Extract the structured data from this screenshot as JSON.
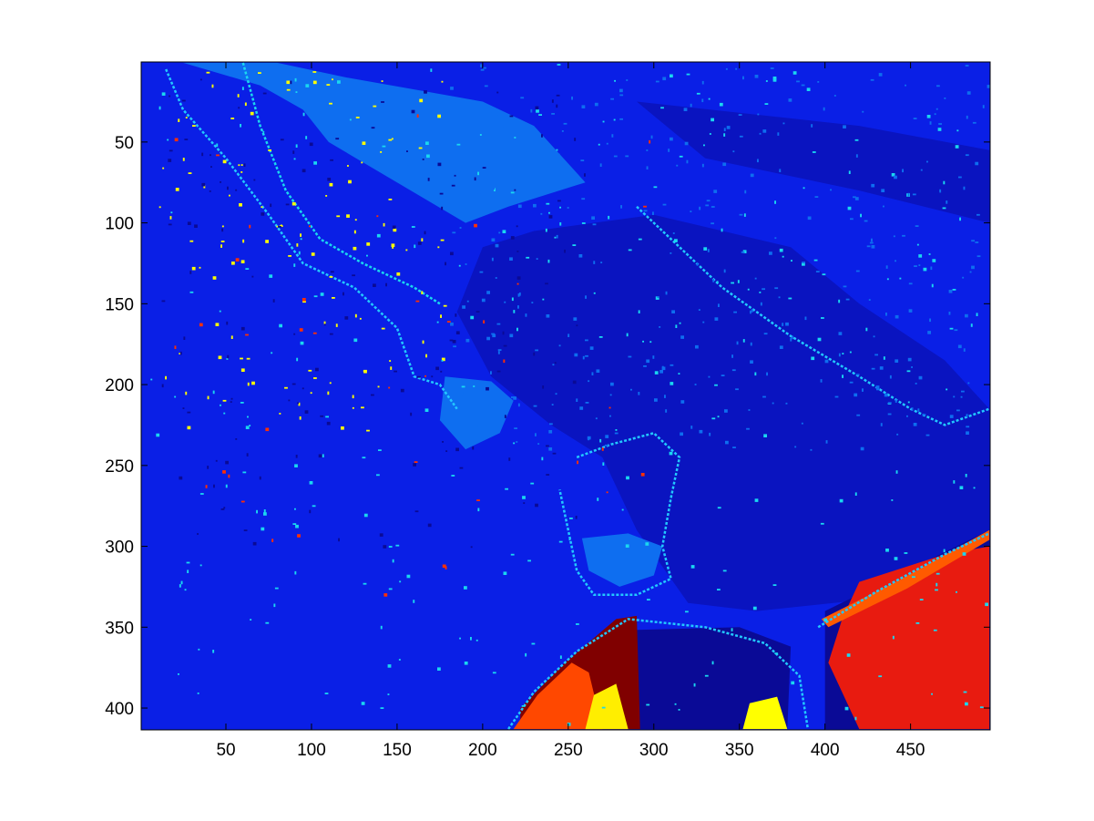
{
  "chart_data": {
    "type": "heatmap",
    "title": "",
    "xlabel": "",
    "ylabel": "",
    "xlim": [
      0.5,
      496.5
    ],
    "ylim": [
      0.5,
      413.5
    ],
    "y_reversed": true,
    "grid": false,
    "colormap": "jet",
    "x_ticks": [
      50,
      100,
      150,
      200,
      250,
      300,
      350,
      400,
      450
    ],
    "y_ticks": [
      50,
      100,
      150,
      200,
      250,
      300,
      350,
      400
    ],
    "x_tick_labels": [
      "50",
      "100",
      "150",
      "200",
      "250",
      "300",
      "350",
      "400",
      "450"
    ],
    "y_tick_labels": [
      "50",
      "100",
      "150",
      "200",
      "250",
      "300",
      "350",
      "400"
    ],
    "background_color": "#0a1fe6",
    "regions": [
      {
        "name": "upper-left-light-band",
        "color": "#0e6ef0",
        "points": [
          [
            25,
            1
          ],
          [
            80,
            1
          ],
          [
            120,
            10
          ],
          [
            200,
            25
          ],
          [
            230,
            40
          ],
          [
            260,
            75
          ],
          [
            215,
            90
          ],
          [
            190,
            100
          ],
          [
            150,
            75
          ],
          [
            110,
            50
          ],
          [
            95,
            30
          ],
          [
            70,
            15
          ]
        ]
      },
      {
        "name": "central-dark-channel",
        "color": "#0a14c0",
        "points": [
          [
            230,
            105
          ],
          [
            300,
            95
          ],
          [
            380,
            115
          ],
          [
            420,
            150
          ],
          [
            470,
            185
          ],
          [
            496,
            215
          ],
          [
            496,
            300
          ],
          [
            450,
            330
          ],
          [
            360,
            340
          ],
          [
            320,
            335
          ],
          [
            290,
            290
          ],
          [
            270,
            245
          ],
          [
            240,
            225
          ],
          [
            205,
            195
          ],
          [
            185,
            155
          ],
          [
            200,
            115
          ]
        ]
      },
      {
        "name": "upper-right-dark-strip",
        "color": "#0a14c0",
        "points": [
          [
            290,
            25
          ],
          [
            420,
            40
          ],
          [
            496,
            55
          ],
          [
            496,
            100
          ],
          [
            420,
            80
          ],
          [
            330,
            60
          ]
        ]
      },
      {
        "name": "mid-island",
        "color": "#0e6ef0",
        "points": [
          [
            178,
            195
          ],
          [
            205,
            198
          ],
          [
            218,
            210
          ],
          [
            210,
            230
          ],
          [
            190,
            240
          ],
          [
            175,
            222
          ]
        ]
      },
      {
        "name": "lower-island",
        "color": "#0e6ef0",
        "points": [
          [
            258,
            295
          ],
          [
            285,
            292
          ],
          [
            305,
            300
          ],
          [
            300,
            318
          ],
          [
            280,
            325
          ],
          [
            262,
            315
          ]
        ]
      },
      {
        "name": "bottom-right-navy",
        "color": "#0a0a96",
        "points": [
          [
            400,
            340
          ],
          [
            496,
            290
          ],
          [
            496,
            413
          ],
          [
            400,
            413
          ]
        ]
      },
      {
        "name": "bottom-right-red",
        "color": "#e81b10",
        "points": [
          [
            420,
            322
          ],
          [
            470,
            305
          ],
          [
            496,
            300
          ],
          [
            496,
            413
          ],
          [
            420,
            413
          ],
          [
            402,
            372
          ],
          [
            410,
            345
          ]
        ]
      },
      {
        "name": "bottom-right-orange-rim",
        "color": "#ff5a00",
        "points": [
          [
            398,
            345
          ],
          [
            445,
            320
          ],
          [
            496,
            290
          ],
          [
            496,
            296
          ],
          [
            448,
            326
          ],
          [
            402,
            350
          ]
        ]
      },
      {
        "name": "bottom-middle-navy",
        "color": "#0a0a96",
        "points": [
          [
            280,
            352
          ],
          [
            350,
            350
          ],
          [
            380,
            362
          ],
          [
            378,
            413
          ],
          [
            285,
            413
          ]
        ]
      },
      {
        "name": "bottom-dark-red",
        "color": "#800000",
        "points": [
          [
            222,
            400
          ],
          [
            248,
            372
          ],
          [
            278,
            345
          ],
          [
            290,
            343
          ],
          [
            292,
            413
          ],
          [
            222,
            413
          ]
        ]
      },
      {
        "name": "bottom-orange",
        "color": "#ff4800",
        "points": [
          [
            218,
            413
          ],
          [
            232,
            392
          ],
          [
            252,
            372
          ],
          [
            262,
            378
          ],
          [
            270,
            413
          ]
        ]
      },
      {
        "name": "bottom-yellow-left",
        "color": "#ffee00",
        "points": [
          [
            260,
            413
          ],
          [
            265,
            392
          ],
          [
            278,
            385
          ],
          [
            285,
            413
          ]
        ]
      },
      {
        "name": "bottom-yellow-right",
        "color": "#ffff00",
        "points": [
          [
            352,
            413
          ],
          [
            356,
            397
          ],
          [
            372,
            393
          ],
          [
            378,
            413
          ]
        ]
      }
    ],
    "line_features": [
      {
        "name": "left-coast-cyan",
        "color": "#22c8ff",
        "points": [
          [
            15,
            5
          ],
          [
            25,
            30
          ],
          [
            50,
            60
          ],
          [
            75,
            95
          ],
          [
            95,
            125
          ],
          [
            125,
            140
          ],
          [
            150,
            165
          ],
          [
            160,
            195
          ],
          [
            175,
            200
          ],
          [
            185,
            215
          ]
        ]
      },
      {
        "name": "left-coast-cyan-2",
        "color": "#1ad7f0",
        "points": [
          [
            60,
            1
          ],
          [
            70,
            40
          ],
          [
            85,
            80
          ],
          [
            105,
            110
          ],
          [
            130,
            125
          ],
          [
            160,
            140
          ],
          [
            175,
            150
          ]
        ]
      },
      {
        "name": "island-rim",
        "color": "#22c8ff",
        "points": [
          [
            255,
            245
          ],
          [
            275,
            237
          ],
          [
            300,
            230
          ],
          [
            315,
            245
          ],
          [
            310,
            270
          ],
          [
            305,
            300
          ],
          [
            310,
            320
          ],
          [
            290,
            330
          ],
          [
            265,
            330
          ],
          [
            255,
            315
          ],
          [
            250,
            290
          ],
          [
            245,
            265
          ]
        ]
      },
      {
        "name": "right-coast",
        "color": "#22c8ff",
        "points": [
          [
            290,
            90
          ],
          [
            340,
            140
          ],
          [
            380,
            170
          ],
          [
            420,
            195
          ],
          [
            450,
            215
          ],
          [
            470,
            225
          ],
          [
            496,
            215
          ]
        ]
      },
      {
        "name": "lower-right-coast",
        "color": "#22c8ff",
        "points": [
          [
            396,
            350
          ],
          [
            430,
            328
          ],
          [
            470,
            305
          ],
          [
            496,
            292
          ]
        ]
      },
      {
        "name": "bottom-coast",
        "color": "#22c8ff",
        "points": [
          [
            215,
            413
          ],
          [
            230,
            390
          ],
          [
            255,
            365
          ],
          [
            285,
            345
          ],
          [
            330,
            350
          ],
          [
            365,
            360
          ],
          [
            385,
            380
          ],
          [
            390,
            413
          ]
        ]
      }
    ],
    "speckles": [
      {
        "name": "yellow-speckles",
        "color": "#ffff00",
        "count": 130,
        "xrange": [
          10,
          180
        ],
        "yrange": [
          5,
          230
        ]
      },
      {
        "name": "cyan-speckles",
        "color": "#1ad7f0",
        "count": 320,
        "xrange": [
          5,
          496
        ],
        "yrange": [
          1,
          413
        ]
      },
      {
        "name": "red-speckles",
        "color": "#ff3000",
        "count": 40,
        "xrange": [
          15,
          300
        ],
        "yrange": [
          20,
          330
        ]
      },
      {
        "name": "light-blue-speckles",
        "color": "#0e6ef0",
        "count": 380,
        "xrange": [
          180,
          496
        ],
        "yrange": [
          1,
          240
        ]
      },
      {
        "name": "dark-speckles",
        "color": "#0a0a96",
        "count": 160,
        "xrange": [
          10,
          260
        ],
        "yrange": [
          10,
          300
        ]
      }
    ]
  }
}
